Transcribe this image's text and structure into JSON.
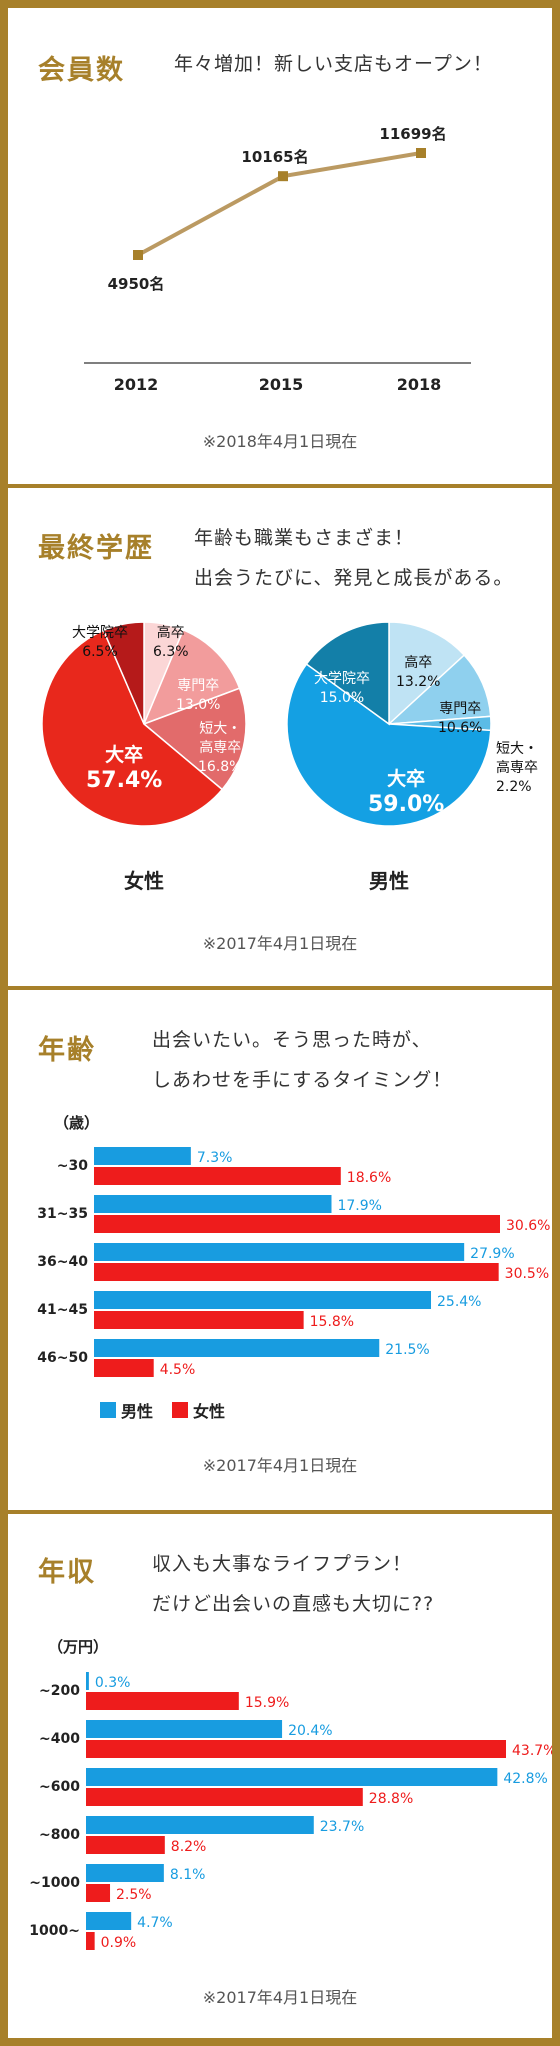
{
  "colors": {
    "gold": "#a7802a",
    "male": "#189ce0",
    "female": "#ee1c1c",
    "line": "#bb9a62"
  },
  "members": {
    "title": "会員数",
    "subtitle": "年々増加！新しい支店もオープン！",
    "note": "※2018年4月1日現在",
    "chart_data": {
      "type": "line",
      "categories": [
        "2012",
        "2015",
        "2018"
      ],
      "values": [
        4950,
        10165,
        11699
      ],
      "value_labels": [
        "4950名",
        "10165名",
        "11699名"
      ],
      "ylim": [
        3000,
        13000
      ],
      "title": "",
      "xlabel": "",
      "ylabel": ""
    }
  },
  "education": {
    "title": "最終学歴",
    "subtitle_lines": [
      "年齢も職業もさまざま！",
      "出会うたびに、発見と成長がある。"
    ],
    "note": "※2017年4月1日現在",
    "chart_data": [
      {
        "type": "pie",
        "name": "女性",
        "slices": [
          {
            "label": "高卒",
            "value": 6.3,
            "value_label": "6.3%",
            "color": "#fbd6d6"
          },
          {
            "label": "専門卒",
            "value": 13.0,
            "value_label": "13.0%",
            "color": "#f29c9c"
          },
          {
            "label": "短大・高専卒",
            "value": 16.8,
            "value_label": "16.8%",
            "color": "#e26b6b"
          },
          {
            "label": "大卒",
            "value": 57.4,
            "value_label": "57.4%",
            "color": "#e8281c"
          },
          {
            "label": "大学院卒",
            "value": 6.5,
            "value_label": "6.5%",
            "color": "#b51a1a"
          }
        ]
      },
      {
        "type": "pie",
        "name": "男性",
        "slices": [
          {
            "label": "高卒",
            "value": 13.2,
            "value_label": "13.2%",
            "color": "#bfe3f4"
          },
          {
            "label": "専門卒",
            "value": 10.6,
            "value_label": "10.6%",
            "color": "#8fd0ee"
          },
          {
            "label": "短大・高専卒",
            "value": 2.2,
            "value_label": "2.2%",
            "color": "#5bbbe6"
          },
          {
            "label": "大卒",
            "value": 59.0,
            "value_label": "59.0%",
            "color": "#14a0e3"
          },
          {
            "label": "大学院卒",
            "value": 15.0,
            "value_label": "15.0%",
            "color": "#137fa8"
          }
        ]
      }
    ]
  },
  "age": {
    "title": "年齢",
    "subtitle_lines": [
      "出会いたい。そう思った時が、",
      "しあわせを手にするタイミング！"
    ],
    "unit": "（歳）",
    "legend": [
      "男性",
      "女性"
    ],
    "note": "※2017年4月1日現在",
    "chart_data": {
      "type": "bar",
      "orientation": "horizontal",
      "categories": [
        "~30",
        "31~35",
        "36~40",
        "41~45",
        "46~50"
      ],
      "series": [
        {
          "name": "男性",
          "values": [
            7.3,
            17.9,
            27.9,
            25.4,
            21.5
          ]
        },
        {
          "name": "女性",
          "values": [
            18.6,
            30.6,
            30.5,
            15.8,
            4.5
          ]
        }
      ],
      "xlim": [
        0,
        30.6
      ]
    }
  },
  "income": {
    "title": "年収",
    "subtitle_lines": [
      "収入も大事なライフプラン！",
      "だけど出会いの直感も大切に??"
    ],
    "unit": "（万円）",
    "note": "※2017年4月1日現在",
    "chart_data": {
      "type": "bar",
      "orientation": "horizontal",
      "categories": [
        "~200",
        "~400",
        "~600",
        "~800",
        "~1000",
        "1000~"
      ],
      "series": [
        {
          "name": "男性",
          "values": [
            0.3,
            20.4,
            42.8,
            23.7,
            8.1,
            4.7
          ]
        },
        {
          "name": "女性",
          "values": [
            15.9,
            43.7,
            28.8,
            8.2,
            2.5,
            0.9
          ]
        }
      ],
      "xlim": [
        0,
        43.7
      ]
    }
  }
}
